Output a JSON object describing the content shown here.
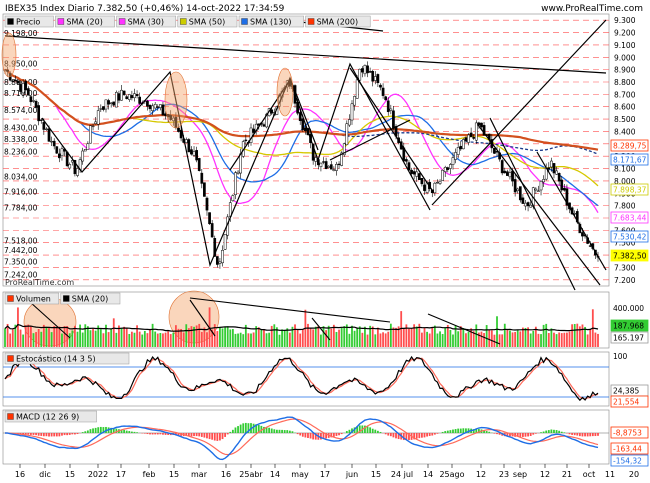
{
  "header": {
    "title": "IBEX35 Index Diario 7.382,50 (+0,46%) 14-oct-2022 17:34:59",
    "watermark": "www.ProRealTime.com",
    "watermark_small": "ProRealTime.com"
  },
  "price_panel": {
    "legend": [
      {
        "label": "Precio",
        "color": "#000000"
      },
      {
        "label": "SMA (20)",
        "color": "#ff33ff"
      },
      {
        "label": "SMA (30)",
        "color": "#ff33ff"
      },
      {
        "label": "SMA (50)",
        "color": "#cccc00"
      },
      {
        "label": "SMA (130)",
        "color": "#1e6ee6"
      },
      {
        "label": "SMA (200)",
        "color": "#ff3300"
      }
    ],
    "left_ticks": [
      "9.198,00",
      "8.950,00",
      "8.800,00",
      "8.710,00",
      "8.574,00",
      "8.430,00",
      "8.338,00",
      "8.236,00",
      "8.034,00",
      "7.916,00",
      "7.784,00",
      "7.518,00",
      "7.442,00",
      "7.350,00",
      "7.242,00"
    ],
    "right_ticks": [
      "9.300",
      "9.200",
      "9.100",
      "9.000",
      "8.900",
      "8.800",
      "8.700",
      "8.600",
      "8.500",
      "8.400",
      "8.300",
      "8.200",
      "8.100",
      "8.000",
      "7.900",
      "7.800",
      "7.700",
      "7.600",
      "7.500",
      "7.400",
      "7.300",
      "7.200"
    ],
    "value_tags": [
      {
        "text": "8.289,75",
        "color": "#ff3300"
      },
      {
        "text": "8.171,67",
        "color": "#1e6ee6"
      },
      {
        "text": "7.898,37",
        "color": "#cccc00"
      },
      {
        "text": "7.683,44",
        "color": "#ff33ff"
      },
      {
        "text": "7.530,42",
        "color": "#1e6ee6"
      },
      {
        "text": "7.382,50",
        "color": "#ffff00"
      }
    ]
  },
  "volume_panel": {
    "legend": [
      {
        "label": "Volumen",
        "color": "#ff3300"
      },
      {
        "label": "SMA (20)",
        "color": "#000000"
      }
    ],
    "right_ticks": [
      "400.000",
      "200.000"
    ],
    "value_tags": [
      {
        "text": "187.968",
        "color": "#33cc33"
      },
      {
        "text": "165.197",
        "color": "#ffffff"
      }
    ]
  },
  "stoch_panel": {
    "legend": [
      {
        "label": "Estocástico (14 3 5)",
        "color": "#ff3300"
      }
    ],
    "right_ticks": [
      "100",
      "0"
    ],
    "value_tags": [
      {
        "text": "24,385",
        "color": "#ffffff"
      },
      {
        "text": "21,554",
        "color": "#ff3300"
      }
    ]
  },
  "macd_panel": {
    "legend": [
      {
        "label": "MACD (12 26 9)",
        "color": "#ff3300"
      }
    ],
    "value_tags": [
      {
        "text": "-8,8753",
        "color": "#ff3300"
      },
      {
        "text": "-163,44",
        "color": "#ff3300"
      },
      {
        "text": "-154,32",
        "color": "#1e6ee6"
      }
    ]
  },
  "x_axis": {
    "labels": [
      "16",
      "dic",
      "15",
      "2022",
      "17",
      "feb",
      "15",
      "mar",
      "16",
      "25abr",
      "14",
      "may",
      "17",
      "jun",
      "15",
      "24 jul",
      "14",
      "25ago",
      "12",
      "23",
      "sep",
      "12",
      "21",
      "oct",
      "11",
      "20"
    ]
  },
  "chart_data": {
    "type": "candlestick",
    "instrument": "IBEX35 Index Diario",
    "last": 7382.5,
    "change_pct": 0.46,
    "timestamp": "14-oct-2022 17:34:59",
    "x": [
      "16",
      "dic",
      "15",
      "2022",
      "17",
      "feb",
      "15",
      "mar",
      "16",
      "25abr",
      "14",
      "may",
      "17",
      "jun",
      "15",
      "24 jul",
      "14",
      "25ago",
      "12",
      "23",
      "sep",
      "12",
      "21",
      "oct",
      "11",
      "20"
    ],
    "y_range_right": [
      7150,
      9350
    ],
    "close_anchors": [
      8900,
      8700,
      8300,
      8080,
      8600,
      8700,
      8650,
      8500,
      8200,
      7300,
      8300,
      8500,
      8800,
      8200,
      8100,
      8950,
      8700,
      8100,
      7900,
      8200,
      8450,
      8100,
      7800,
      8150,
      7700,
      7382.5
    ],
    "series": [
      {
        "name": "Precio",
        "last": 7382.5
      },
      {
        "name": "SMA (20)",
        "last": 7683.44
      },
      {
        "name": "SMA (30)",
        "last": 7530.42
      },
      {
        "name": "SMA (50)",
        "last": 7898.37
      },
      {
        "name": "SMA (130)",
        "last": 8171.67
      },
      {
        "name": "SMA (200)",
        "last": 8289.75
      }
    ],
    "volume": {
      "last": 187968,
      "sma20": 165197,
      "y_range": [
        0,
        500000
      ]
    },
    "stochastic": {
      "k": 24.385,
      "d": 21.554,
      "y_range": [
        0,
        100
      ]
    },
    "macd": {
      "hist": -8.8753,
      "macd": -163.44,
      "signal": -154.32
    }
  }
}
